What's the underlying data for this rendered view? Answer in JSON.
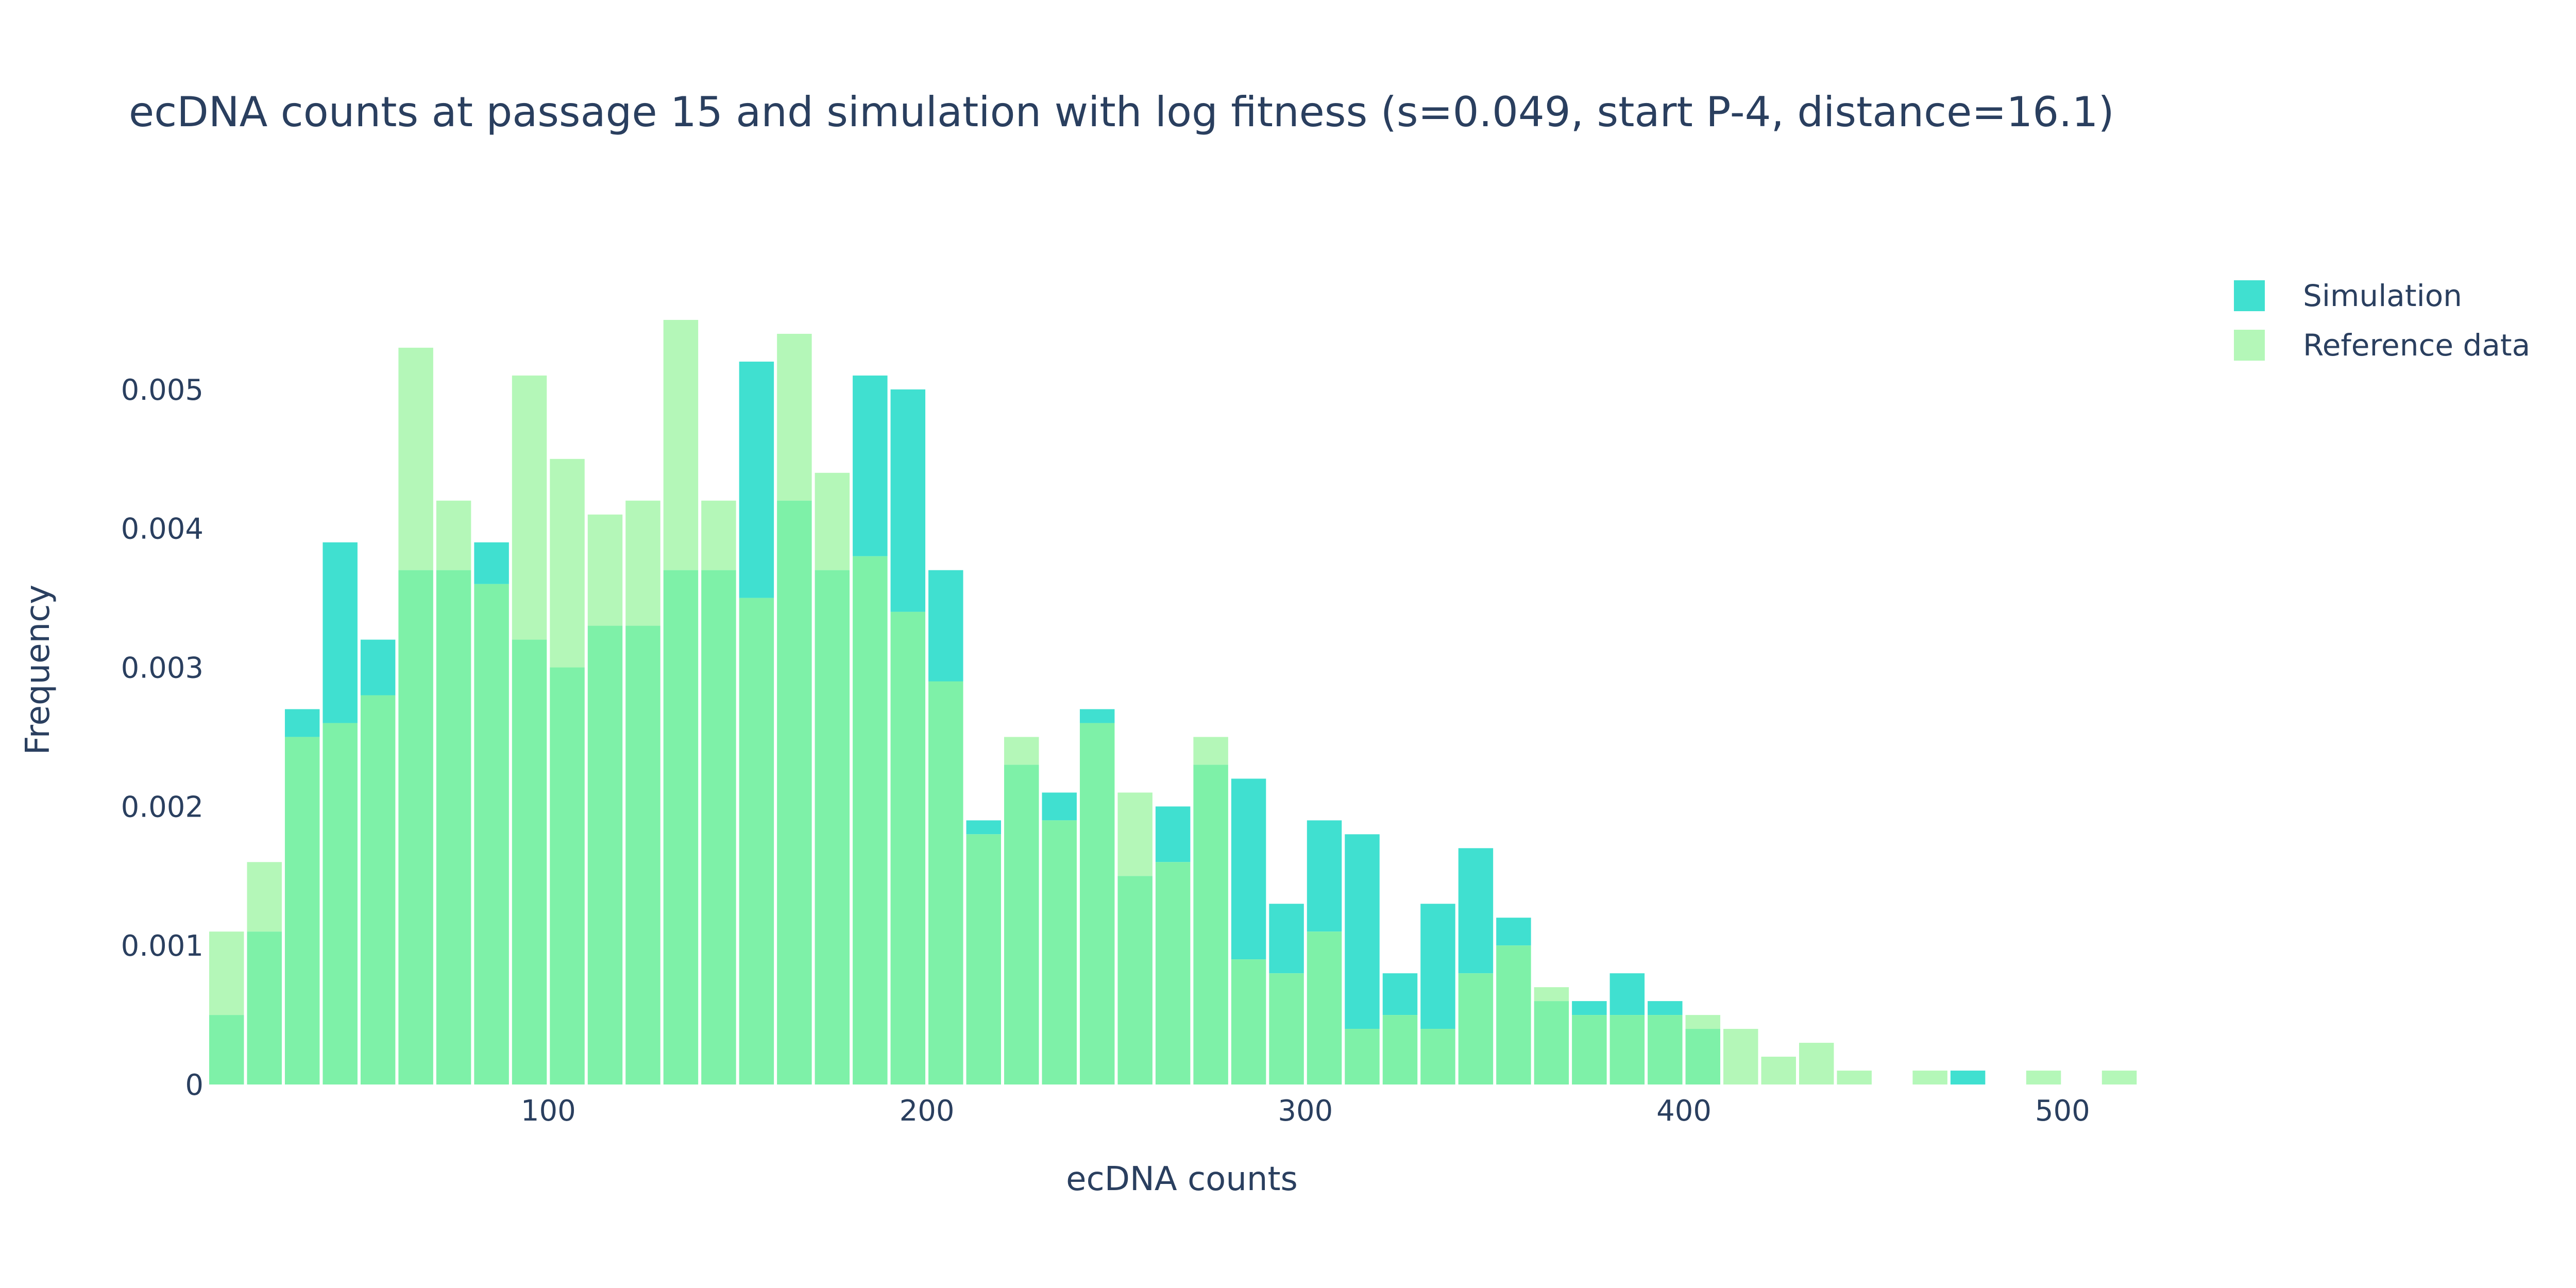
{
  "chart_data": {
    "type": "bar",
    "title": "ecDNA counts at passage 15 and simulation with log fitness (s=0.049, start P-4, distance=16.1)",
    "xlabel": "ecDNA counts",
    "ylabel": "Frequency",
    "xlim": [
      10,
      525
    ],
    "ylim": [
      0,
      0.0058
    ],
    "bin_width": 10,
    "x_ticks": [
      100,
      200,
      300,
      400,
      500
    ],
    "x_tick_labels": [
      "100",
      "200",
      "300",
      "400",
      "500"
    ],
    "y_ticks": [
      0,
      0.001,
      0.002,
      0.003,
      0.004,
      0.005
    ],
    "y_tick_labels": [
      "0",
      "0.001",
      "0.002",
      "0.003",
      "0.004",
      "0.005"
    ],
    "grid": false,
    "legend_position": "top-right",
    "bin_starts": [
      10,
      20,
      30,
      40,
      50,
      60,
      70,
      80,
      90,
      100,
      110,
      120,
      130,
      140,
      150,
      160,
      170,
      180,
      190,
      200,
      210,
      220,
      230,
      240,
      250,
      260,
      270,
      280,
      290,
      300,
      310,
      320,
      330,
      340,
      350,
      360,
      370,
      380,
      390,
      400,
      410,
      420,
      430,
      440,
      450,
      460,
      470,
      480,
      490,
      500,
      510
    ],
    "series": [
      {
        "name": "Simulation",
        "color": "#40e0d0",
        "values": [
          0.0005,
          0.0011,
          0.0027,
          0.0039,
          0.0032,
          0.0037,
          0.0037,
          0.0039,
          0.0032,
          0.003,
          0.0033,
          0.0033,
          0.0037,
          0.0037,
          0.0052,
          0.0042,
          0.0037,
          0.0051,
          0.005,
          0.0037,
          0.0019,
          0.0023,
          0.0021,
          0.0027,
          0.0015,
          0.002,
          0.0023,
          0.0022,
          0.0013,
          0.0019,
          0.0018,
          0.0008,
          0.0013,
          0.0017,
          0.0012,
          0.0006,
          0.0006,
          0.0008,
          0.0006,
          0.0004,
          0,
          0,
          0,
          0,
          0,
          0,
          0.0001,
          0,
          0,
          0,
          0
        ]
      },
      {
        "name": "Reference data",
        "color": "#b4f7b8",
        "values": [
          0.0011,
          0.0016,
          0.0025,
          0.0026,
          0.0028,
          0.0053,
          0.0042,
          0.0036,
          0.0051,
          0.0045,
          0.0041,
          0.0042,
          0.0055,
          0.0042,
          0.0035,
          0.0054,
          0.0044,
          0.0038,
          0.0034,
          0.0029,
          0.0018,
          0.0025,
          0.0019,
          0.0026,
          0.0021,
          0.0016,
          0.0025,
          0.0009,
          0.0008,
          0.0011,
          0.0004,
          0.0005,
          0.0004,
          0.0008,
          0.001,
          0.0007,
          0.0005,
          0.0005,
          0.0005,
          0.0005,
          0.0004,
          0.0002,
          0.0003,
          0.0001,
          0,
          0.0001,
          0,
          0,
          0.0001,
          0,
          0.0001
        ]
      }
    ],
    "overlap_color": "#7ef1a8"
  }
}
